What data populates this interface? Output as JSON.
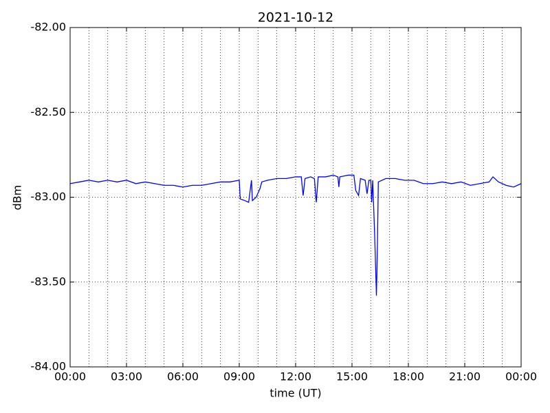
{
  "chart_data": {
    "type": "line",
    "title": "2021-10-12",
    "xlabel": "time (UT)",
    "ylabel": "dBm",
    "color": "#0000ff",
    "x": [
      0,
      0.5,
      1,
      1.5,
      2,
      2.5,
      3,
      3.5,
      4,
      4.5,
      5,
      5.5,
      6,
      6.5,
      7,
      7.5,
      8,
      8.5,
      9.0,
      9.05,
      9.3,
      9.5,
      9.65,
      9.7,
      9.9,
      10.1,
      10.2,
      10.5,
      11,
      11.5,
      12,
      12.3,
      12.4,
      12.5,
      12.8,
      13.0,
      13.1,
      13.2,
      13.6,
      14.0,
      14.25,
      14.3,
      14.35,
      14.8,
      15.1,
      15.2,
      15.35,
      15.45,
      15.7,
      15.8,
      15.9,
      16.0,
      16.05,
      16.1,
      16.2,
      16.3,
      16.35,
      16.4,
      16.8,
      17.3,
      17.8,
      18.3,
      18.8,
      19.3,
      19.8,
      20.3,
      20.8,
      21.3,
      21.8,
      22.3,
      22.5,
      22.8,
      23.2,
      23.6,
      24
    ],
    "values": [
      -82.92,
      -82.91,
      -82.9,
      -82.91,
      -82.9,
      -82.91,
      -82.9,
      -82.92,
      -82.91,
      -82.92,
      -82.93,
      -82.93,
      -82.94,
      -82.93,
      -82.93,
      -82.92,
      -82.91,
      -82.91,
      -82.9,
      -83.01,
      -83.02,
      -83.03,
      -82.9,
      -83.02,
      -83.0,
      -82.95,
      -82.91,
      -82.9,
      -82.89,
      -82.89,
      -82.88,
      -82.88,
      -82.99,
      -82.89,
      -82.88,
      -82.89,
      -83.03,
      -82.88,
      -82.88,
      -82.87,
      -82.88,
      -82.94,
      -82.88,
      -82.87,
      -82.87,
      -82.96,
      -82.99,
      -82.89,
      -82.9,
      -82.98,
      -82.9,
      -82.9,
      -83.03,
      -82.9,
      -83.2,
      -83.58,
      -83.3,
      -82.91,
      -82.89,
      -82.89,
      -82.9,
      -82.9,
      -82.92,
      -82.92,
      -82.91,
      -82.92,
      -82.91,
      -82.93,
      -82.92,
      -82.91,
      -82.88,
      -82.91,
      -82.93,
      -82.94,
      -82.92
    ],
    "xlim": [
      0,
      24
    ],
    "xticks": [
      {
        "value": 0,
        "label": "00:00"
      },
      {
        "value": 3,
        "label": "03:00"
      },
      {
        "value": 6,
        "label": "06:00"
      },
      {
        "value": 9,
        "label": "09:00"
      },
      {
        "value": 12,
        "label": "12:00"
      },
      {
        "value": 15,
        "label": "15:00"
      },
      {
        "value": 18,
        "label": "18:00"
      },
      {
        "value": 21,
        "label": "21:00"
      },
      {
        "value": 24,
        "label": "00:00"
      }
    ],
    "xminor_ticks": [
      1,
      2,
      4,
      5,
      7,
      8,
      10,
      11,
      13,
      14,
      16,
      17,
      19,
      20,
      22,
      23
    ],
    "ylim": [
      -84,
      -82
    ],
    "yticks": [
      {
        "value": -84,
        "label": "-84.00"
      },
      {
        "value": -83.5,
        "label": "-83.50"
      },
      {
        "value": -83,
        "label": "-83.00"
      },
      {
        "value": -82.5,
        "label": "-82.50"
      },
      {
        "value": -82,
        "label": "-82.00"
      }
    ],
    "grid": true
  }
}
